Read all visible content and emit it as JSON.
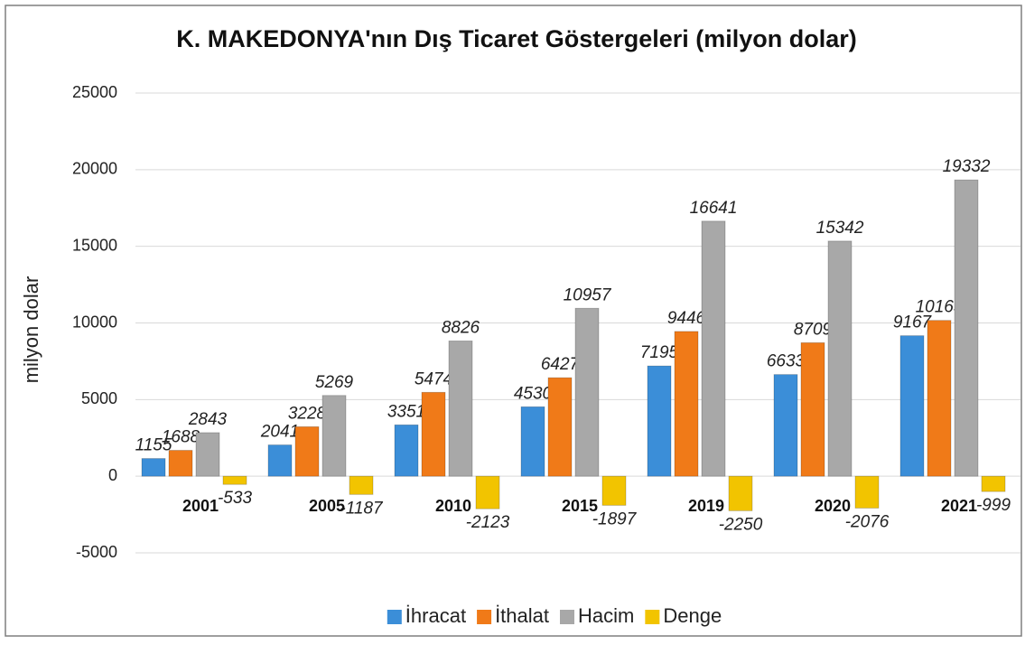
{
  "chart_data": {
    "type": "bar",
    "title": "K. MAKEDONYA'nın Dış Ticaret Göstergeleri  (milyon dolar)",
    "y_label": "milyon dolar",
    "categories": [
      "2001",
      "2005",
      "2010",
      "2015",
      "2019",
      "2020",
      "2021"
    ],
    "series": [
      {
        "name": "İhracat",
        "color": "#3b8ed8",
        "values": [
          1155,
          2041,
          3351,
          4530,
          7195,
          6633,
          9167
        ]
      },
      {
        "name": "İthalat",
        "color": "#f07a18",
        "values": [
          1688,
          3228,
          5474,
          6427,
          9446,
          8709,
          10165
        ]
      },
      {
        "name": "Hacim",
        "color": "#a8a8a8",
        "values": [
          2843,
          5269,
          8826,
          10957,
          16641,
          15342,
          19332
        ]
      },
      {
        "name": "Denge",
        "color": "#f2c400",
        "values": [
          -533,
          -1187,
          -2123,
          -1897,
          -2250,
          -2076,
          -999
        ]
      }
    ],
    "ylim": [
      -5000,
      25000
    ],
    "yticks": [
      -5000,
      0,
      5000,
      10000,
      15000,
      20000,
      25000
    ],
    "grid": true,
    "legend": "bottom"
  }
}
